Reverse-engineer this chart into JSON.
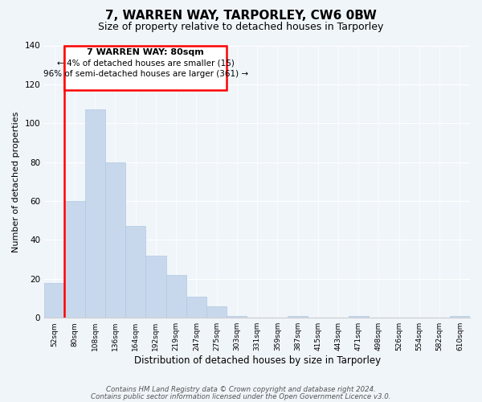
{
  "title": "7, WARREN WAY, TARPORLEY, CW6 0BW",
  "subtitle": "Size of property relative to detached houses in Tarporley",
  "xlabel": "Distribution of detached houses by size in Tarporley",
  "ylabel": "Number of detached properties",
  "bar_labels": [
    "52sqm",
    "80sqm",
    "108sqm",
    "136sqm",
    "164sqm",
    "192sqm",
    "219sqm",
    "247sqm",
    "275sqm",
    "303sqm",
    "331sqm",
    "359sqm",
    "387sqm",
    "415sqm",
    "443sqm",
    "471sqm",
    "498sqm",
    "526sqm",
    "554sqm",
    "582sqm",
    "610sqm"
  ],
  "bar_values": [
    18,
    60,
    107,
    80,
    47,
    32,
    22,
    11,
    6,
    1,
    0,
    0,
    1,
    0,
    0,
    1,
    0,
    0,
    0,
    0,
    1
  ],
  "bar_color": "#c8d8ec",
  "bar_edge_color": "#b0c8e0",
  "ylim": [
    0,
    140
  ],
  "yticks": [
    0,
    20,
    40,
    60,
    80,
    100,
    120,
    140
  ],
  "red_line_bar_index": 1,
  "annotation_title": "7 WARREN WAY: 80sqm",
  "annotation_line1": "← 4% of detached houses are smaller (15)",
  "annotation_line2": "96% of semi-detached houses are larger (361) →",
  "footer_line1": "Contains HM Land Registry data © Crown copyright and database right 2024.",
  "footer_line2": "Contains public sector information licensed under the Open Government Licence v3.0.",
  "bg_color": "#f0f4f8",
  "plot_bg_color": "#f0f4f8"
}
